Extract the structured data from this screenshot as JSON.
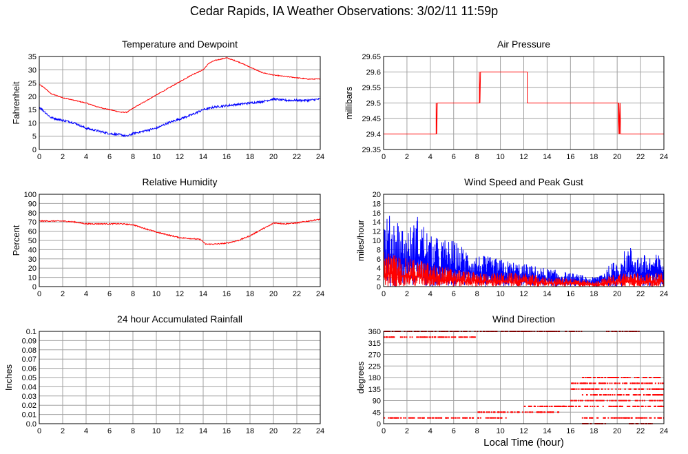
{
  "title": "Cedar Rapids, IA Weather Observations: 3/02/11 11:59p",
  "xlabel": "Local Time (hour)",
  "colors": {
    "red": "#ff0000",
    "blue": "#0000ff",
    "grid": "#a0a0a0"
  },
  "chart_data": [
    {
      "id": "temp",
      "type": "line",
      "title": "Temperature and Dewpoint",
      "ylabel": "Fahrenheit",
      "xlim": [
        0,
        24
      ],
      "ylim": [
        0,
        35
      ],
      "xticks": [
        0,
        2,
        4,
        6,
        8,
        10,
        12,
        14,
        16,
        18,
        20,
        22,
        24
      ],
      "yticks": [
        0,
        5,
        10,
        15,
        20,
        25,
        30,
        35
      ],
      "grid": true,
      "series": [
        {
          "color": "#ff0000",
          "noise": 0.15,
          "points": [
            [
              0,
              24.5
            ],
            [
              0.5,
              23
            ],
            [
              1,
              21
            ],
            [
              2,
              19.5
            ],
            [
              3,
              18.5
            ],
            [
              4,
              17.5
            ],
            [
              5,
              16
            ],
            [
              6,
              15
            ],
            [
              7,
              14
            ],
            [
              7.5,
              14
            ],
            [
              8,
              15.5
            ],
            [
              9,
              18
            ],
            [
              10,
              20.5
            ],
            [
              11,
              23
            ],
            [
              12,
              25.5
            ],
            [
              13,
              28
            ],
            [
              14,
              30
            ],
            [
              14.5,
              32.5
            ],
            [
              15,
              33.5
            ],
            [
              16,
              34.5
            ],
            [
              17,
              33
            ],
            [
              18,
              31
            ],
            [
              19,
              29
            ],
            [
              20,
              28
            ],
            [
              21,
              27.5
            ],
            [
              22,
              27
            ],
            [
              23,
              26.5
            ],
            [
              24,
              26.5
            ]
          ]
        },
        {
          "color": "#0000ff",
          "noise": 0.4,
          "points": [
            [
              0,
              16
            ],
            [
              0.5,
              14
            ],
            [
              1,
              12
            ],
            [
              2,
              11
            ],
            [
              3,
              10
            ],
            [
              4,
              8
            ],
            [
              5,
              7
            ],
            [
              6,
              6
            ],
            [
              7,
              5.5
            ],
            [
              7.5,
              5
            ],
            [
              8,
              6
            ],
            [
              9,
              7
            ],
            [
              10,
              8
            ],
            [
              11,
              10
            ],
            [
              12,
              11.5
            ],
            [
              13,
              13
            ],
            [
              14,
              15
            ],
            [
              15,
              16
            ],
            [
              16,
              16.5
            ],
            [
              17,
              17
            ],
            [
              18,
              17.5
            ],
            [
              19,
              18
            ],
            [
              20,
              19
            ],
            [
              21,
              18.5
            ],
            [
              22,
              18.5
            ],
            [
              23,
              18.5
            ],
            [
              24,
              19
            ]
          ]
        }
      ]
    },
    {
      "id": "pressure",
      "type": "line",
      "title": "Air Pressure",
      "ylabel": "millibars",
      "xlim": [
        0,
        24
      ],
      "ylim": [
        29.35,
        29.65
      ],
      "xticks": [
        0,
        2,
        4,
        6,
        8,
        10,
        12,
        14,
        16,
        18,
        20,
        22,
        24
      ],
      "yticks": [
        29.35,
        29.4,
        29.45,
        29.5,
        29.55,
        29.6,
        29.65
      ],
      "ytick_labels": [
        "29.35",
        "29.4",
        "29.45",
        "29.5",
        "29.55",
        "29.6",
        "29.65"
      ],
      "grid": true,
      "series": [
        {
          "color": "#ff0000",
          "noise": 0,
          "points": [
            [
              0,
              29.4
            ],
            [
              4.5,
              29.4
            ],
            [
              4.5,
              29.5
            ],
            [
              4.55,
              29.4
            ],
            [
              4.6,
              29.5
            ],
            [
              8.2,
              29.5
            ],
            [
              8.2,
              29.6
            ],
            [
              8.25,
              29.5
            ],
            [
              8.3,
              29.6
            ],
            [
              12.3,
              29.6
            ],
            [
              12.3,
              29.5
            ],
            [
              20.1,
              29.5
            ],
            [
              20.1,
              29.4
            ],
            [
              20.15,
              29.5
            ],
            [
              20.2,
              29.4
            ],
            [
              20.25,
              29.5
            ],
            [
              20.3,
              29.4
            ],
            [
              24,
              29.4
            ]
          ]
        }
      ]
    },
    {
      "id": "humidity",
      "type": "line",
      "title": "Relative Humidity",
      "ylabel": "Percent",
      "xlim": [
        0,
        24
      ],
      "ylim": [
        0,
        100
      ],
      "xticks": [
        0,
        2,
        4,
        6,
        8,
        10,
        12,
        14,
        16,
        18,
        20,
        22,
        24
      ],
      "yticks": [
        0,
        10,
        20,
        30,
        40,
        50,
        60,
        70,
        80,
        90,
        100
      ],
      "grid": true,
      "series": [
        {
          "color": "#ff0000",
          "noise": 0.6,
          "points": [
            [
              0,
              71
            ],
            [
              1,
              71
            ],
            [
              2,
              71
            ],
            [
              3,
              70
            ],
            [
              4,
              68
            ],
            [
              5,
              68
            ],
            [
              6,
              68
            ],
            [
              7,
              68
            ],
            [
              8,
              67
            ],
            [
              9,
              63
            ],
            [
              10,
              59
            ],
            [
              11,
              56
            ],
            [
              12,
              53
            ],
            [
              13,
              52
            ],
            [
              13.8,
              51
            ],
            [
              14.2,
              46
            ],
            [
              15,
              46
            ],
            [
              16,
              47
            ],
            [
              17,
              50
            ],
            [
              18,
              55
            ],
            [
              19,
              62
            ],
            [
              19.8,
              67
            ],
            [
              20,
              69
            ],
            [
              21,
              68
            ],
            [
              22,
              69
            ],
            [
              23,
              71
            ],
            [
              24,
              73
            ]
          ]
        }
      ]
    },
    {
      "id": "wind",
      "type": "line",
      "title": "Wind Speed and Peak Gust",
      "ylabel": "miles/hour",
      "xlim": [
        0,
        24
      ],
      "ylim": [
        0,
        20
      ],
      "xticks": [
        0,
        2,
        4,
        6,
        8,
        10,
        12,
        14,
        16,
        18,
        20,
        22,
        24
      ],
      "yticks": [
        0,
        2,
        4,
        6,
        8,
        10,
        12,
        14,
        16,
        18,
        20
      ],
      "grid": true,
      "series": [
        {
          "color": "#0000ff",
          "envelope": [
            [
              0,
              15
            ],
            [
              1,
              16
            ],
            [
              2,
              12
            ],
            [
              3,
              16
            ],
            [
              4,
              11
            ],
            [
              6,
              10
            ],
            [
              8,
              7
            ],
            [
              10,
              6
            ],
            [
              12,
              5
            ],
            [
              14,
              4
            ],
            [
              16,
              3
            ],
            [
              18,
              2
            ],
            [
              20,
              6
            ],
            [
              21,
              9
            ],
            [
              22,
              7
            ],
            [
              24,
              7
            ]
          ]
        },
        {
          "color": "#ff0000",
          "envelope": [
            [
              0,
              8
            ],
            [
              1,
              7
            ],
            [
              2,
              6
            ],
            [
              3,
              6
            ],
            [
              4,
              5
            ],
            [
              6,
              4
            ],
            [
              8,
              3
            ],
            [
              10,
              3
            ],
            [
              12,
              3
            ],
            [
              14,
              2
            ],
            [
              16,
              2
            ],
            [
              18,
              1
            ],
            [
              20,
              3
            ],
            [
              22,
              3
            ],
            [
              24,
              3
            ]
          ]
        }
      ]
    },
    {
      "id": "rain",
      "type": "line",
      "title": "24 hour Accumulated Rainfall",
      "ylabel": "Inches",
      "xlim": [
        0,
        24
      ],
      "ylim": [
        0,
        0.1
      ],
      "xticks": [
        0,
        2,
        4,
        6,
        8,
        10,
        12,
        14,
        16,
        18,
        20,
        22,
        24
      ],
      "yticks": [
        0,
        0.01,
        0.02,
        0.03,
        0.04,
        0.05,
        0.06,
        0.07,
        0.08,
        0.09,
        0.1
      ],
      "ytick_labels": [
        "0.0",
        "0.01",
        "0.02",
        "0.03",
        "0.04",
        "0.05",
        "0.06",
        "0.07",
        "0.08",
        "0.09",
        "0.1"
      ],
      "grid": true,
      "series": [
        {
          "color": "#ff0000",
          "noise": 0,
          "points": [
            [
              0,
              0
            ],
            [
              24,
              0
            ]
          ]
        }
      ]
    },
    {
      "id": "direction",
      "type": "scatter",
      "title": "Wind Direction",
      "ylabel": "degrees",
      "xlim": [
        0,
        24
      ],
      "ylim": [
        0,
        360
      ],
      "xticks": [
        0,
        2,
        4,
        6,
        8,
        10,
        12,
        14,
        16,
        18,
        20,
        22,
        24
      ],
      "yticks": [
        0,
        45,
        90,
        135,
        180,
        225,
        270,
        315,
        360
      ],
      "grid": true,
      "series": [
        {
          "color": "#ff0000",
          "bands": [
            {
              "y": 360,
              "x": [
                0,
                17
              ]
            },
            {
              "y": 360,
              "x": [
                19,
                22
              ]
            },
            {
              "y": 337.5,
              "x": [
                0,
                8
              ]
            },
            {
              "y": 22.5,
              "x": [
                0,
                10.5
              ]
            },
            {
              "y": 22.5,
              "x": [
                17,
                24
              ]
            },
            {
              "y": 45,
              "x": [
                8,
                15
              ]
            },
            {
              "y": 67.5,
              "x": [
                12,
                24
              ]
            },
            {
              "y": 90,
              "x": [
                16,
                24
              ]
            },
            {
              "y": 112.5,
              "x": [
                17,
                24
              ]
            },
            {
              "y": 135,
              "x": [
                16,
                24
              ]
            },
            {
              "y": 157.5,
              "x": [
                16,
                24
              ]
            },
            {
              "y": 180,
              "x": [
                17,
                24
              ]
            },
            {
              "y": 0,
              "x": [
                17,
                19
              ]
            },
            {
              "y": 0,
              "x": [
                21,
                23
              ]
            }
          ]
        }
      ]
    }
  ]
}
